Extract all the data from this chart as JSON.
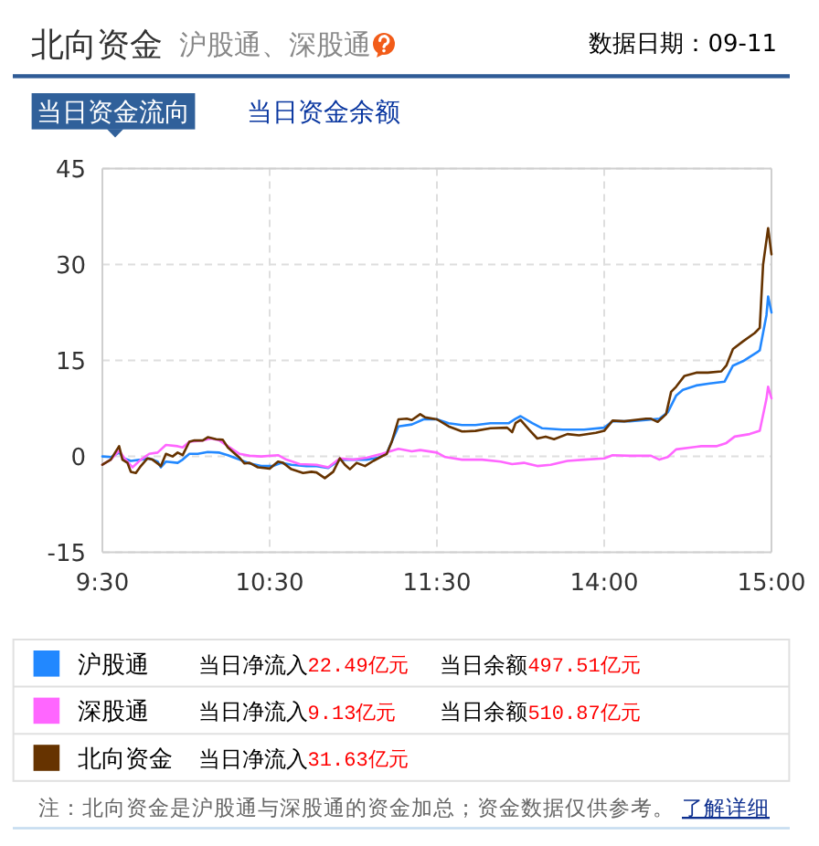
{
  "chart_data": [
    {
      "type": "line",
      "title": "北向资金",
      "subtitle": "沪股通、深股通",
      "annotations": [
        "数据日期：09-11",
        "当日资金流向",
        "当日资金余额",
        "当日净流入",
        "22.49亿元",
        "当日余额",
        "497.51亿元",
        "当日净流入",
        "9.13亿元",
        "当日余额",
        "510.87亿元",
        "当日净流入",
        "31.63亿元",
        "注：北向资金是沪股通与深股通的资金加总；资金数据仅供参考。",
        "了解详细"
      ],
      "xlim": [
        9.5,
        11.5
      ],
      "xticks": [
        {
          "value": 9.5,
          "label": "9:30"
        },
        {
          "value": 10.5,
          "label": "10:30"
        },
        {
          "value": 11.5,
          "label": "11:30"
        }
      ],
      "ylim": [
        -15,
        45
      ],
      "yticks": [
        -15,
        0,
        15,
        30,
        45
      ],
      "grid": true,
      "legend": "bottom",
      "line_style": "solid",
      "series": [
        {
          "name": "沪股通",
          "color": "#2288ff",
          "x": [
            9.5,
            9.55,
            9.6,
            9.63,
            9.67,
            9.73,
            9.78,
            9.83,
            9.85,
            9.88,
            9.95,
            9.98,
            10.02,
            10.07,
            10.13,
            10.2,
            10.25,
            10.32,
            10.38,
            10.45,
            10.52,
            10.57,
            10.63,
            10.72,
            10.78,
            10.85,
            10.92,
            10.98,
            11.08,
            11.15,
            11.2,
            11.27,
            11.35,
            11.42,
            11.5
          ],
          "values": [
            0,
            -0.1,
            0.6,
            -0.3,
            -0.7,
            -0.5,
            -0.3,
            -0.8,
            -1.7,
            -0.8,
            -1.0,
            -0.5,
            0.4,
            0.4,
            0.7,
            0.6,
            0.2,
            -0.5,
            -1.1,
            -1.5,
            -1.5,
            -1.0,
            -1.3,
            -1.5,
            -1.5,
            -1.8,
            -0.5,
            -0.5,
            -0.5,
            -0.2,
            0.5,
            4.7,
            5.0,
            5.8,
            5.8
          ]
        },
        {
          "name": "深股通",
          "color": "#ff66ff",
          "x": [
            9.5,
            9.55,
            9.6,
            9.63,
            9.68,
            9.73,
            9.78,
            9.83,
            9.88,
            9.95,
            9.98,
            10.02,
            10.1,
            10.15,
            10.2,
            10.25,
            10.32,
            10.38,
            10.45,
            10.55,
            10.6,
            10.68,
            10.78,
            10.85,
            10.92,
            11,
            11.08,
            11.17,
            11.27,
            11.35,
            11.4,
            11.5
          ],
          "values": [
            -1.3,
            -0.5,
            0.9,
            -0.2,
            -1.7,
            -0.5,
            0.4,
            0.6,
            1.8,
            1.6,
            1.4,
            2.3,
            2.5,
            2.8,
            2.5,
            1.6,
            0.4,
            0.1,
            0,
            0.2,
            -0.5,
            -1.2,
            -1.3,
            -1.7,
            -0.3,
            -0.5,
            -0.2,
            0.4,
            1.2,
            0.8,
            1.0,
            0.6
          ]
        },
        {
          "name": "北向资金",
          "color": "#663300",
          "x": [
            9.5,
            9.55,
            9.6,
            9.62,
            9.65,
            9.67,
            9.7,
            9.73,
            9.77,
            9.8,
            9.85,
            9.88,
            9.92,
            9.95,
            9.98,
            10.02,
            10.05,
            10.1,
            10.13,
            10.18,
            10.22,
            10.25,
            10.32,
            10.35,
            10.38,
            10.43,
            10.5,
            10.55,
            10.58,
            10.63,
            10.7,
            10.75,
            10.78,
            10.83,
            10.88,
            10.92,
            10.95,
            10.98,
            11.02,
            11.07,
            11.12,
            11.17,
            11.2,
            11.23,
            11.27,
            11.32,
            11.35,
            11.4,
            11.43,
            11.5
          ],
          "values": [
            -1.3,
            -0.5,
            1.6,
            -0.5,
            -1.0,
            -2.4,
            -2.6,
            -1.5,
            -0.3,
            -0.5,
            -1.5,
            0.4,
            0,
            0.6,
            0.2,
            2.3,
            2.5,
            2.5,
            3.0,
            2.7,
            2.6,
            1.4,
            -0.2,
            -1.1,
            -1.0,
            -1.7,
            -1.9,
            -0.8,
            -1.0,
            -2.0,
            -2.6,
            -2.4,
            -2.5,
            -3.4,
            -2.4,
            -0.3,
            -1.3,
            -2.0,
            -1.0,
            -1.5,
            -0.7,
            0,
            0.4,
            2.3,
            5.8,
            5.9,
            5.7,
            6.6,
            6.1,
            5.8
          ]
        }
      ]
    },
    {
      "type": "line",
      "xlim": [
        13,
        15
      ],
      "xticks": [
        {
          "value": 14,
          "label": "14:00"
        },
        {
          "value": 15,
          "label": "15:00"
        }
      ],
      "ylim": [
        -15,
        45
      ],
      "yticks": [
        -15,
        0,
        15,
        30,
        45
      ],
      "tick_labels": "x",
      "grid": true,
      "line_style": "solid",
      "series": [
        {
          "color": "#2288ff",
          "x": [
            13,
            13.07,
            13.15,
            13.23,
            13.32,
            13.43,
            13.47,
            13.5,
            13.57,
            13.63,
            13.75,
            13.88,
            14,
            14.05,
            14.15,
            14.25,
            14.33,
            14.38,
            14.43,
            14.47,
            14.55,
            14.63,
            14.72,
            14.77,
            14.83,
            14.92,
            14.93,
            14.97,
            14.98,
            15
          ],
          "values": [
            5.8,
            5.2,
            4.9,
            4.9,
            5.2,
            5.2,
            5.9,
            6.3,
            5.2,
            4.4,
            4.2,
            4.2,
            4.5,
            5.5,
            5.5,
            5.7,
            5.9,
            6.9,
            9.5,
            10.4,
            11.1,
            11.4,
            11.7,
            14.2,
            14.9,
            16.4,
            16.6,
            22.1,
            25.0,
            22.5
          ]
        },
        {
          "color": "#ff66ff",
          "x": [
            13,
            13.05,
            13.15,
            13.27,
            13.38,
            13.45,
            13.52,
            13.6,
            13.68,
            13.78,
            13.88,
            14,
            14.05,
            14.15,
            14.28,
            14.33,
            14.38,
            14.43,
            14.52,
            14.58,
            14.67,
            14.73,
            14.78,
            14.87,
            14.93,
            14.97,
            14.98,
            15
          ],
          "values": [
            0.6,
            -0.1,
            -0.5,
            -0.5,
            -0.8,
            -1.2,
            -1.0,
            -1.5,
            -1.3,
            -0.7,
            -0.5,
            -0.3,
            0.2,
            0.1,
            0.1,
            -0.5,
            -0.1,
            1.1,
            1.4,
            1.6,
            1.6,
            2.1,
            3.1,
            3.5,
            4.0,
            9.0,
            10.9,
            9.1
          ]
        },
        {
          "color": "#663300",
          "x": [
            13,
            13.07,
            13.15,
            13.23,
            13.32,
            13.42,
            13.45,
            13.47,
            13.5,
            13.55,
            13.6,
            13.65,
            13.7,
            13.78,
            13.85,
            13.95,
            14,
            14.05,
            14.12,
            14.18,
            14.25,
            14.28,
            14.32,
            14.37,
            14.4,
            14.43,
            14.48,
            14.55,
            14.62,
            14.7,
            14.73,
            14.77,
            14.83,
            14.9,
            14.93,
            14.95,
            14.98,
            15
          ],
          "values": [
            5.8,
            4.7,
            3.9,
            4.0,
            4.4,
            4.5,
            3.8,
            5.2,
            5.7,
            4.2,
            2.8,
            3.1,
            2.7,
            3.5,
            3.3,
            3.7,
            4.0,
            5.6,
            5.5,
            5.7,
            5.9,
            5.9,
            5.4,
            6.6,
            10.1,
            10.9,
            12.6,
            13.1,
            13.1,
            13.3,
            14.2,
            16.8,
            18.0,
            19.3,
            20.1,
            30.0,
            35.7,
            31.6
          ]
        }
      ]
    }
  ]
}
